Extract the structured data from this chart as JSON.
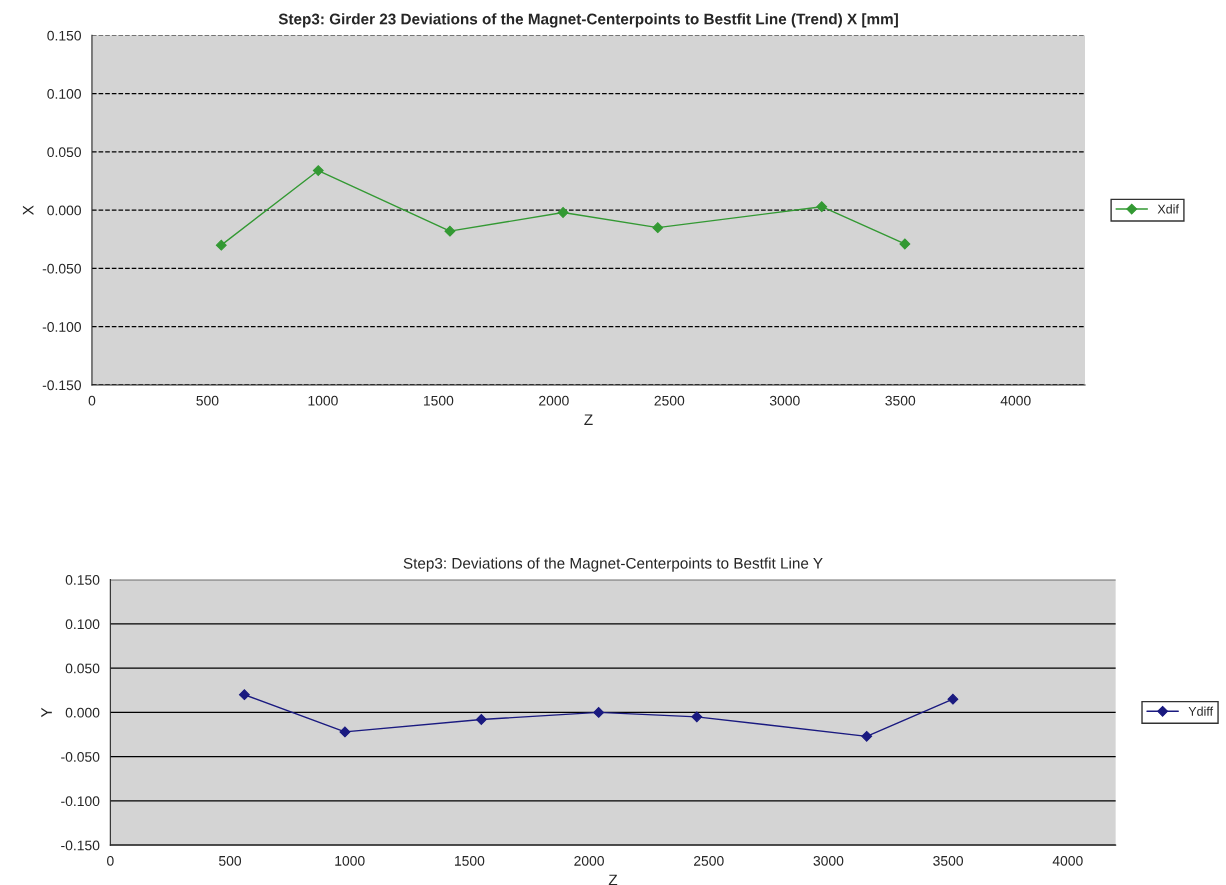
{
  "chart_data": [
    {
      "type": "line",
      "title": "Step3: Girder 23 Deviations of the Magnet-Centerpoints to Bestfit Line (Trend) X [mm]",
      "xlabel": "Z",
      "ylabel": "X",
      "series": [
        {
          "name": "Xdif",
          "color": "#339933",
          "x": [
            560,
            980,
            1550,
            2040,
            2450,
            3160,
            3520
          ],
          "values": [
            -0.03,
            0.034,
            -0.018,
            -0.002,
            -0.015,
            0.003,
            -0.029
          ]
        }
      ],
      "xlim": [
        0,
        4300
      ],
      "xticks": [
        0,
        500,
        1000,
        1500,
        2000,
        2500,
        3000,
        3500,
        4000
      ],
      "ylim": [
        -0.15,
        0.15
      ],
      "yticks": [
        {
          "value": -0.15,
          "label": "-0.150"
        },
        {
          "value": -0.1,
          "label": "-0.100"
        },
        {
          "value": -0.05,
          "label": "-0.050"
        },
        {
          "value": 0,
          "label": "0.000"
        },
        {
          "value": 0.05,
          "label": "0.050"
        },
        {
          "value": 0.1,
          "label": "0.100"
        },
        {
          "value": 0.15,
          "label": "0.150"
        }
      ],
      "grid": "y",
      "legend": "right",
      "marker": "diamond",
      "line_style": "solid"
    },
    {
      "type": "line",
      "title": "Step3: Deviations of the Magnet-Centerpoints to Bestfit Line Y",
      "xlabel": "Z",
      "ylabel": "Y",
      "series": [
        {
          "name": "Ydiff",
          "color": "#1a1a80",
          "x": [
            560,
            980,
            1550,
            2040,
            2450,
            3160,
            3520
          ],
          "values": [
            0.02,
            -0.022,
            -0.008,
            0.0,
            -0.005,
            -0.027,
            0.015
          ]
        }
      ],
      "xlim": [
        0,
        4200
      ],
      "xticks": [
        0,
        500,
        1000,
        1500,
        2000,
        2500,
        3000,
        3500,
        4000
      ],
      "ylim": [
        -0.15,
        0.15
      ],
      "yticks": [
        {
          "value": -0.15,
          "label": "-0.150"
        },
        {
          "value": -0.1,
          "label": "-0.100"
        },
        {
          "value": -0.05,
          "label": "-0.050"
        },
        {
          "value": 0,
          "label": "0.000"
        },
        {
          "value": 0.05,
          "label": "0.050"
        },
        {
          "value": 0.1,
          "label": "0.100"
        },
        {
          "value": 0.15,
          "label": "0.150"
        }
      ],
      "grid": "y",
      "legend": "right",
      "marker": "diamond",
      "line_style": "solid"
    }
  ]
}
